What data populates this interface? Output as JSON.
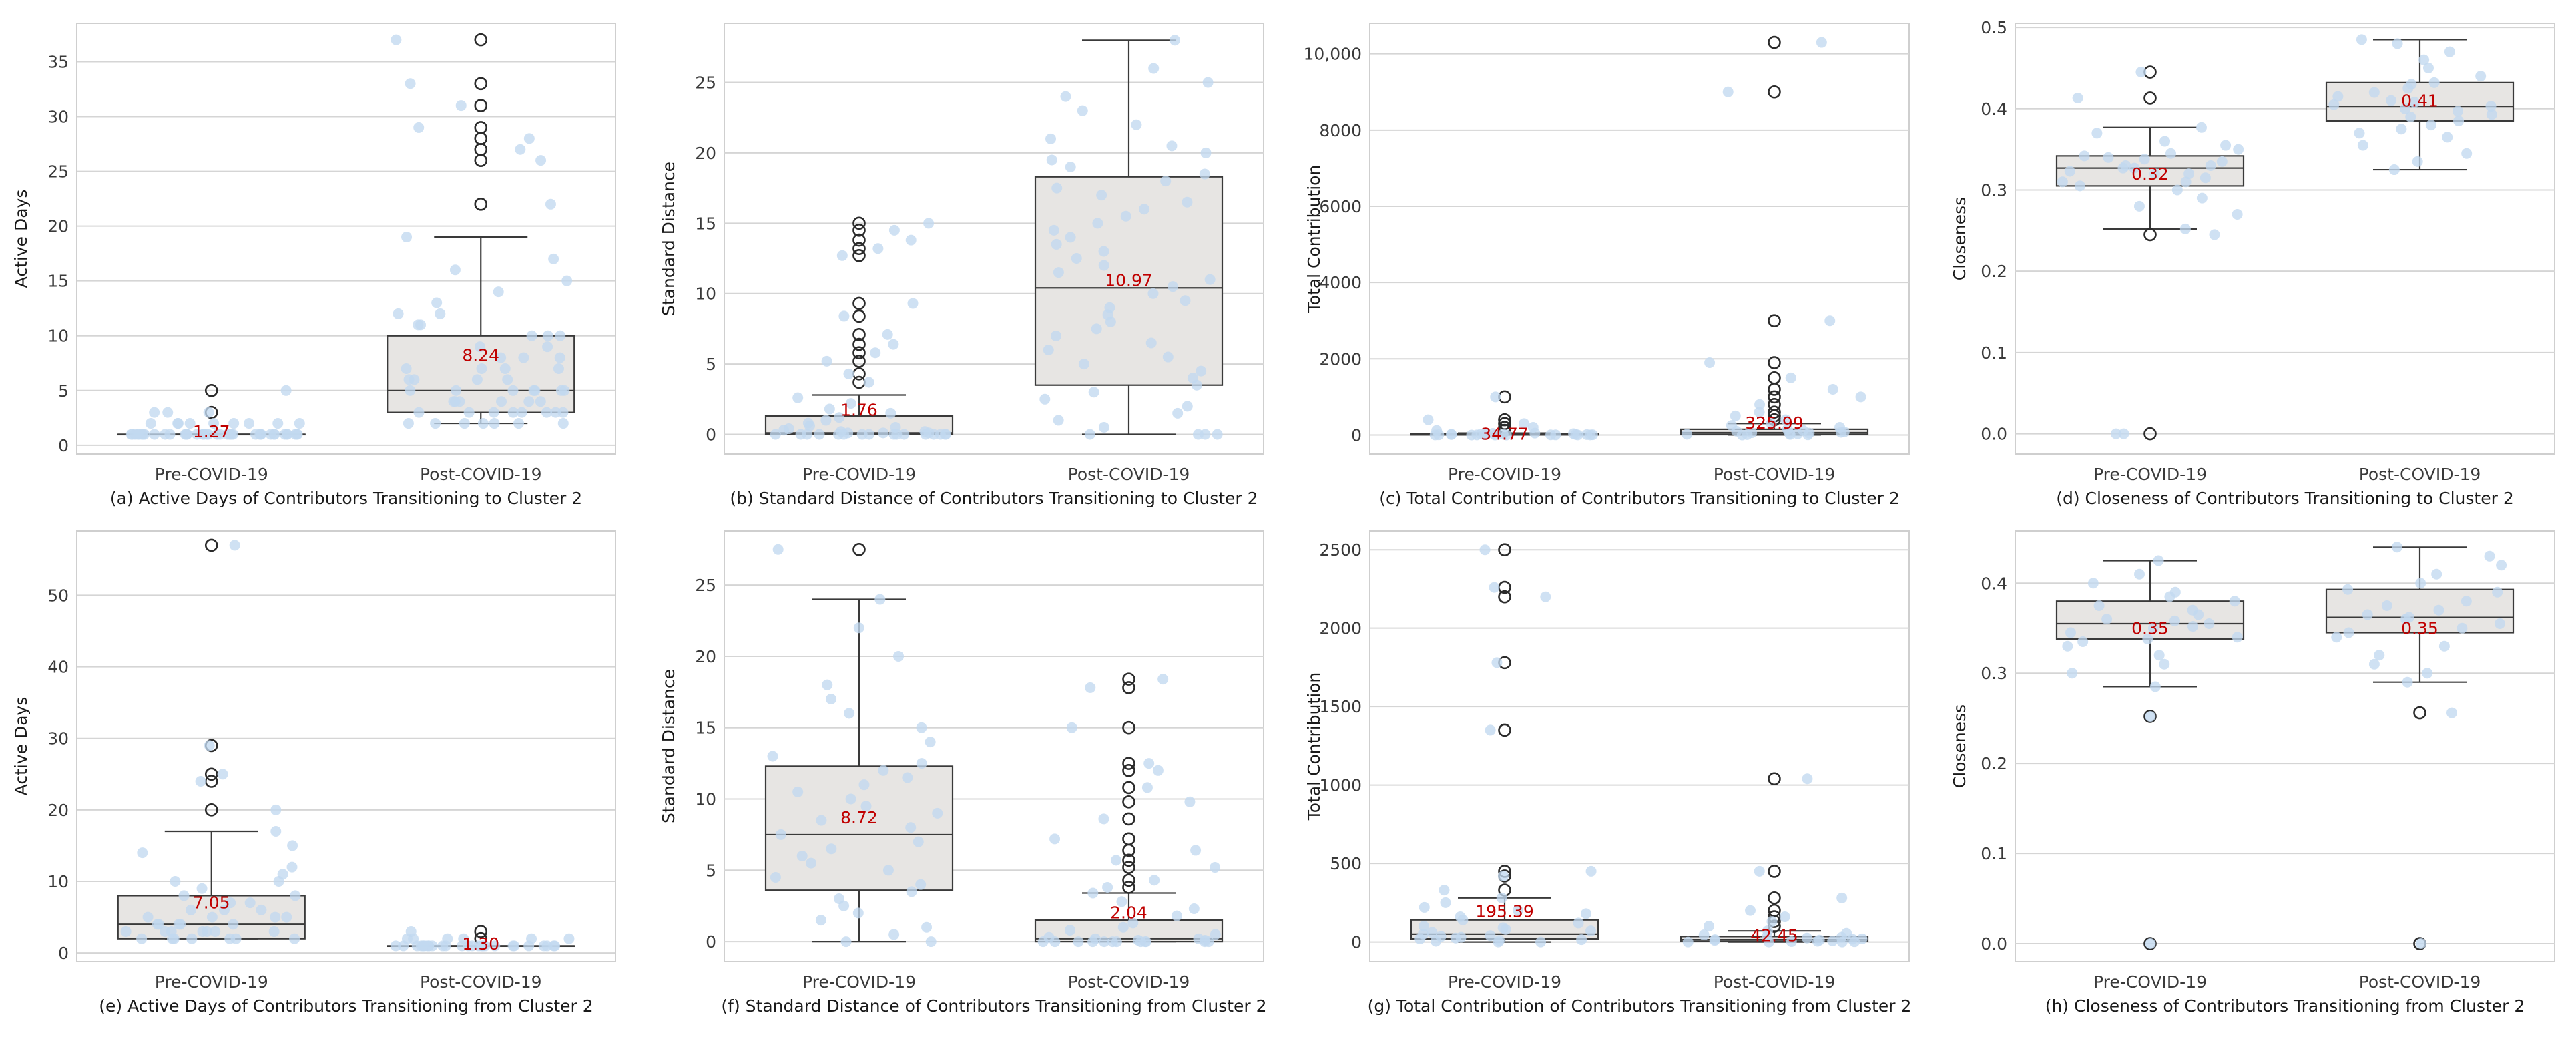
{
  "colors": {
    "box_fill": "#e7e5e3",
    "box_edge": "#3a3a3a",
    "jitter_points": "#c2d8f0",
    "outlier_edge": "#2b2b2b",
    "mean_label": "#c00000",
    "grid": "#d5d5d5"
  },
  "chart_data": [
    {
      "type": "box",
      "caption": "(a) Active Days of Contributors Transitioning to Cluster 2",
      "ylabel": "Active Days",
      "categories": [
        "Pre-COVID-19",
        "Post-COVID-19"
      ],
      "ylim": [
        -0.8,
        38.5
      ],
      "yticks": [
        0,
        5,
        10,
        15,
        20,
        25,
        30,
        35
      ],
      "ytick_labels": [
        "0",
        "5",
        "10",
        "15",
        "20",
        "25",
        "30",
        "35"
      ],
      "boxes": [
        {
          "whislo": 1,
          "q1": 1,
          "med": 1,
          "q3": 1,
          "whishi": 1,
          "mean": 1.27,
          "mean_label": "1.27",
          "fliers": [
            3,
            5
          ],
          "points": [
            1,
            1,
            1,
            1,
            1,
            1,
            1,
            1,
            1,
            1,
            1,
            1,
            1,
            1,
            1,
            1,
            1,
            1,
            1,
            1,
            1,
            1,
            1,
            1,
            1,
            1,
            1,
            1,
            1,
            1,
            1,
            1,
            1,
            1,
            1,
            1,
            1,
            1,
            1,
            1,
            1,
            2,
            2,
            2,
            2,
            2,
            2,
            2,
            2,
            2,
            3,
            3,
            3,
            5
          ]
        },
        {
          "whislo": 2,
          "q1": 3,
          "med": 5,
          "q3": 10,
          "whishi": 19,
          "mean": 8.24,
          "mean_label": "8.24",
          "fliers": [
            22,
            26,
            27,
            28,
            29,
            31,
            33,
            37
          ],
          "points": [
            2,
            2,
            2,
            2,
            2,
            2,
            2,
            3,
            3,
            3,
            3,
            3,
            3,
            3,
            3,
            4,
            4,
            4,
            4,
            4,
            4,
            5,
            5,
            5,
            5,
            5,
            5,
            5,
            6,
            6,
            6,
            6,
            7,
            7,
            7,
            7,
            8,
            8,
            8,
            9,
            9,
            10,
            10,
            10,
            11,
            11,
            12,
            12,
            13,
            14,
            15,
            16,
            17,
            19,
            22,
            26,
            27,
            28,
            29,
            31,
            33,
            37
          ]
        }
      ]
    },
    {
      "type": "box",
      "caption": "(b) Standard Distance of Contributors Transitioning to Cluster 2",
      "ylabel": "Standard Distance",
      "categories": [
        "Pre-COVID-19",
        "Post-COVID-19"
      ],
      "ylim": [
        -1.4,
        29.2
      ],
      "yticks": [
        0,
        5,
        10,
        15,
        20,
        25
      ],
      "ytick_labels": [
        "0",
        "5",
        "10",
        "15",
        "20",
        "25"
      ],
      "boxes": [
        {
          "whislo": 0,
          "q1": 0,
          "med": 0.1,
          "q3": 1.3,
          "whishi": 2.8,
          "mean": 1.76,
          "mean_label": "1.76",
          "fliers": [
            3.7,
            4.3,
            5.2,
            5.8,
            6.4,
            7.1,
            8.4,
            9.3,
            12.7,
            13.2,
            13.8,
            14.5,
            15
          ],
          "points": [
            0,
            0,
            0,
            0,
            0,
            0,
            0,
            0,
            0,
            0,
            0,
            0,
            0,
            0,
            0,
            0,
            0.1,
            0.1,
            0.1,
            0.2,
            0.2,
            0.3,
            0.4,
            0.5,
            0.6,
            0.8,
            1,
            1.2,
            1.5,
            1.8,
            2.2,
            2.6,
            3.7,
            4.3,
            5.2,
            5.8,
            6.4,
            7.1,
            8.4,
            9.3,
            12.7,
            13.2,
            13.8,
            14.5,
            15
          ]
        },
        {
          "whislo": 0,
          "q1": 3.5,
          "med": 10.4,
          "q3": 18.3,
          "whishi": 28,
          "mean": 10.97,
          "mean_label": "10.97",
          "fliers": [],
          "points": [
            0,
            0,
            0,
            0,
            0.5,
            1,
            1.5,
            2,
            2.5,
            3,
            3.5,
            4,
            4.5,
            5,
            5.5,
            6,
            6.5,
            7,
            7.5,
            8,
            8.5,
            9,
            9.5,
            10,
            10.5,
            11,
            11.5,
            12,
            12.5,
            13,
            13.5,
            14,
            14.5,
            15,
            15.5,
            16,
            16.5,
            17,
            17.5,
            18,
            18.5,
            19,
            19.5,
            20,
            20.5,
            21,
            22,
            23,
            24,
            25,
            26,
            28
          ]
        }
      ]
    },
    {
      "type": "box",
      "caption": "(c) Total Contribution of Contributors Transitioning to Cluster 2",
      "ylabel": "Total Contribution",
      "categories": [
        "Pre-COVID-19",
        "Post-COVID-19"
      ],
      "ylim": [
        -500,
        10800
      ],
      "yticks": [
        0,
        2000,
        4000,
        6000,
        8000,
        10000
      ],
      "ytick_labels": [
        "0",
        "2000",
        "4000",
        "6000",
        "8000",
        "10,000"
      ],
      "boxes": [
        {
          "whislo": 0,
          "q1": 2,
          "med": 8,
          "q3": 25,
          "whishi": 50,
          "mean": 34.77,
          "mean_label": "34.77",
          "fliers": [
            120,
            200,
            300,
            400,
            1000
          ],
          "points": [
            0,
            0,
            0,
            1,
            1,
            2,
            2,
            3,
            4,
            5,
            6,
            8,
            10,
            12,
            15,
            18,
            20,
            25,
            30,
            35,
            40,
            50,
            120,
            200,
            300,
            400,
            1000
          ]
        },
        {
          "whislo": 0,
          "q1": 20,
          "med": 60,
          "q3": 150,
          "whishi": 300,
          "mean": 325.99,
          "mean_label": "325.99",
          "fliers": [
            400,
            500,
            600,
            800,
            1000,
            1200,
            1500,
            1900,
            3000,
            9000,
            10300
          ],
          "points": [
            0,
            5,
            10,
            15,
            20,
            30,
            40,
            50,
            60,
            70,
            80,
            100,
            120,
            150,
            200,
            250,
            300,
            400,
            500,
            600,
            800,
            1000,
            1200,
            1500,
            1900,
            3000,
            9000,
            10300
          ]
        }
      ]
    },
    {
      "type": "box",
      "caption": "(d) Closeness of Contributors Transitioning to Cluster 2",
      "ylabel": "Closeness",
      "categories": [
        "Pre-COVID-19",
        "Post-COVID-19"
      ],
      "ylim": [
        -0.025,
        0.505
      ],
      "yticks": [
        0,
        0.1,
        0.2,
        0.3,
        0.4,
        0.5
      ],
      "ytick_labels": [
        "0.0",
        "0.1",
        "0.2",
        "0.3",
        "0.4",
        "0.5"
      ],
      "boxes": [
        {
          "whislo": 0.252,
          "q1": 0.305,
          "med": 0.327,
          "q3": 0.342,
          "whishi": 0.377,
          "mean": 0.32,
          "mean_label": "0.32",
          "fliers": [
            0,
            0.245,
            0.413,
            0.445
          ],
          "points": [
            0,
            0,
            0.245,
            0.252,
            0.27,
            0.28,
            0.29,
            0.3,
            0.305,
            0.31,
            0.31,
            0.315,
            0.32,
            0.32,
            0.323,
            0.327,
            0.327,
            0.33,
            0.33,
            0.335,
            0.338,
            0.34,
            0.342,
            0.345,
            0.35,
            0.355,
            0.36,
            0.37,
            0.377,
            0.413,
            0.445
          ]
        },
        {
          "whislo": 0.325,
          "q1": 0.385,
          "med": 0.403,
          "q3": 0.432,
          "whishi": 0.485,
          "mean": 0.41,
          "mean_label": "0.41",
          "fliers": [],
          "points": [
            0.325,
            0.335,
            0.345,
            0.355,
            0.365,
            0.37,
            0.375,
            0.38,
            0.385,
            0.39,
            0.393,
            0.397,
            0.4,
            0.403,
            0.405,
            0.408,
            0.41,
            0.415,
            0.42,
            0.425,
            0.43,
            0.432,
            0.44,
            0.45,
            0.46,
            0.47,
            0.48,
            0.485
          ]
        }
      ]
    },
    {
      "type": "box",
      "caption": "(e) Active Days of Contributors Transitioning from Cluster 2",
      "ylabel": "Active Days",
      "categories": [
        "Pre-COVID-19",
        "Post-COVID-19"
      ],
      "ylim": [
        -1.2,
        59
      ],
      "yticks": [
        0,
        10,
        20,
        30,
        40,
        50
      ],
      "ytick_labels": [
        "0",
        "10",
        "20",
        "30",
        "40",
        "50"
      ],
      "boxes": [
        {
          "whislo": 2,
          "q1": 2,
          "med": 4,
          "q3": 8,
          "whishi": 17,
          "mean": 7.05,
          "mean_label": "7.05",
          "fliers": [
            20,
            24,
            25,
            29,
            57
          ],
          "points": [
            2,
            2,
            2,
            2,
            2,
            2,
            2,
            3,
            3,
            3,
            3,
            3,
            3,
            3,
            4,
            4,
            4,
            4,
            4,
            5,
            5,
            5,
            5,
            6,
            6,
            6,
            7,
            7,
            8,
            8,
            9,
            10,
            10,
            11,
            12,
            14,
            15,
            17,
            20,
            24,
            25,
            29,
            57
          ]
        },
        {
          "whislo": 1,
          "q1": 1,
          "med": 1,
          "q3": 1,
          "whishi": 1,
          "mean": 1.3,
          "mean_label": "1.30",
          "fliers": [
            2,
            3
          ],
          "points": [
            1,
            1,
            1,
            1,
            1,
            1,
            1,
            1,
            1,
            1,
            1,
            1,
            1,
            1,
            1,
            1,
            1,
            1,
            1,
            1,
            1,
            1,
            1,
            1,
            1,
            1,
            1,
            1,
            1,
            2,
            2,
            2,
            2,
            2,
            2,
            3
          ]
        }
      ]
    },
    {
      "type": "box",
      "caption": "(f) Standard Distance of Contributors Transitioning from Cluster 2",
      "ylabel": "Standard Distance",
      "categories": [
        "Pre-COVID-19",
        "Post-COVID-19"
      ],
      "ylim": [
        -1.4,
        28.8
      ],
      "yticks": [
        0,
        5,
        10,
        15,
        20,
        25
      ],
      "ytick_labels": [
        "0",
        "5",
        "10",
        "15",
        "20",
        "25"
      ],
      "boxes": [
        {
          "whislo": 0,
          "q1": 3.6,
          "med": 7.5,
          "q3": 12.3,
          "whishi": 24,
          "mean": 8.72,
          "mean_label": "8.72",
          "fliers": [
            27.5
          ],
          "points": [
            0,
            0,
            0.5,
            1,
            1.5,
            2,
            2.5,
            3,
            3.5,
            4,
            4.5,
            5,
            5.5,
            6,
            6.5,
            7,
            7.5,
            8,
            8.5,
            9,
            9.5,
            10,
            10.5,
            11,
            11.5,
            12,
            12.5,
            13,
            14,
            15,
            16,
            17,
            18,
            20,
            22,
            24,
            27.5
          ]
        },
        {
          "whislo": 0,
          "q1": 0,
          "med": 0.2,
          "q3": 1.5,
          "whishi": 3.4,
          "mean": 2.04,
          "mean_label": "2.04",
          "fliers": [
            3.8,
            4.3,
            5.2,
            5.7,
            6.4,
            7.2,
            8.6,
            9.8,
            10.8,
            12,
            12.5,
            15,
            17.8,
            18.4
          ],
          "points": [
            0,
            0,
            0,
            0,
            0,
            0,
            0,
            0,
            0,
            0,
            0,
            0,
            0.1,
            0.1,
            0.2,
            0.2,
            0.3,
            0.5,
            0.8,
            1,
            1.3,
            1.8,
            2.3,
            2.8,
            3.4,
            3.8,
            4.3,
            5.2,
            5.7,
            6.4,
            7.2,
            8.6,
            9.8,
            10.8,
            12,
            12.5,
            15,
            17.8,
            18.4
          ]
        }
      ]
    },
    {
      "type": "box",
      "caption": "(g) Total Contribution of Contributors Transitioning from Cluster 2",
      "ylabel": "Total Contribution",
      "categories": [
        "Pre-COVID-19",
        "Post-COVID-19"
      ],
      "ylim": [
        -125,
        2620
      ],
      "yticks": [
        0,
        500,
        1000,
        1500,
        2000,
        2500
      ],
      "ytick_labels": [
        "0",
        "500",
        "1000",
        "1500",
        "2000",
        "2500"
      ],
      "boxes": [
        {
          "whislo": 0,
          "q1": 20,
          "med": 50,
          "q3": 140,
          "whishi": 280,
          "mean": 195.39,
          "mean_label": "195.39",
          "fliers": [
            330,
            420,
            450,
            1350,
            1780,
            2200,
            2260,
            2500
          ],
          "points": [
            0,
            0,
            5,
            10,
            15,
            20,
            25,
            30,
            35,
            40,
            50,
            60,
            70,
            80,
            90,
            100,
            120,
            140,
            160,
            180,
            200,
            220,
            250,
            280,
            330,
            420,
            450,
            1350,
            1780,
            2200,
            2260,
            2500
          ]
        },
        {
          "whislo": 0,
          "q1": 5,
          "med": 15,
          "q3": 35,
          "whishi": 70,
          "mean": 42.45,
          "mean_label": "42.45",
          "fliers": [
            100,
            130,
            160,
            200,
            280,
            450,
            1040
          ],
          "points": [
            0,
            0,
            0,
            2,
            3,
            5,
            7,
            10,
            12,
            15,
            18,
            20,
            25,
            30,
            35,
            45,
            55,
            70,
            100,
            130,
            160,
            200,
            280,
            450,
            1040
          ]
        }
      ]
    },
    {
      "type": "box",
      "caption": "(h) Closeness of Contributors Transitioning from Cluster 2",
      "ylabel": "Closeness",
      "categories": [
        "Pre-COVID-19",
        "Post-COVID-19"
      ],
      "ylim": [
        -0.02,
        0.458
      ],
      "yticks": [
        0,
        0.1,
        0.2,
        0.3,
        0.4
      ],
      "ytick_labels": [
        "0.0",
        "0.1",
        "0.2",
        "0.3",
        "0.4"
      ],
      "boxes": [
        {
          "whislo": 0.285,
          "q1": 0.338,
          "med": 0.355,
          "q3": 0.38,
          "whishi": 0.425,
          "mean": 0.35,
          "mean_label": "0.35",
          "fliers": [
            0,
            0.252
          ],
          "points": [
            0,
            0.252,
            0.285,
            0.3,
            0.31,
            0.32,
            0.33,
            0.335,
            0.338,
            0.34,
            0.345,
            0.35,
            0.352,
            0.355,
            0.358,
            0.36,
            0.365,
            0.37,
            0.375,
            0.38,
            0.385,
            0.39,
            0.4,
            0.41,
            0.425
          ]
        },
        {
          "whislo": 0.29,
          "q1": 0.345,
          "med": 0.362,
          "q3": 0.393,
          "whishi": 0.44,
          "mean": 0.35,
          "mean_label": "0.35",
          "fliers": [
            0,
            0.256
          ],
          "points": [
            0,
            0.256,
            0.29,
            0.3,
            0.31,
            0.32,
            0.33,
            0.34,
            0.345,
            0.35,
            0.355,
            0.36,
            0.362,
            0.365,
            0.37,
            0.375,
            0.38,
            0.39,
            0.393,
            0.4,
            0.41,
            0.42,
            0.43,
            0.44
          ]
        }
      ]
    }
  ]
}
